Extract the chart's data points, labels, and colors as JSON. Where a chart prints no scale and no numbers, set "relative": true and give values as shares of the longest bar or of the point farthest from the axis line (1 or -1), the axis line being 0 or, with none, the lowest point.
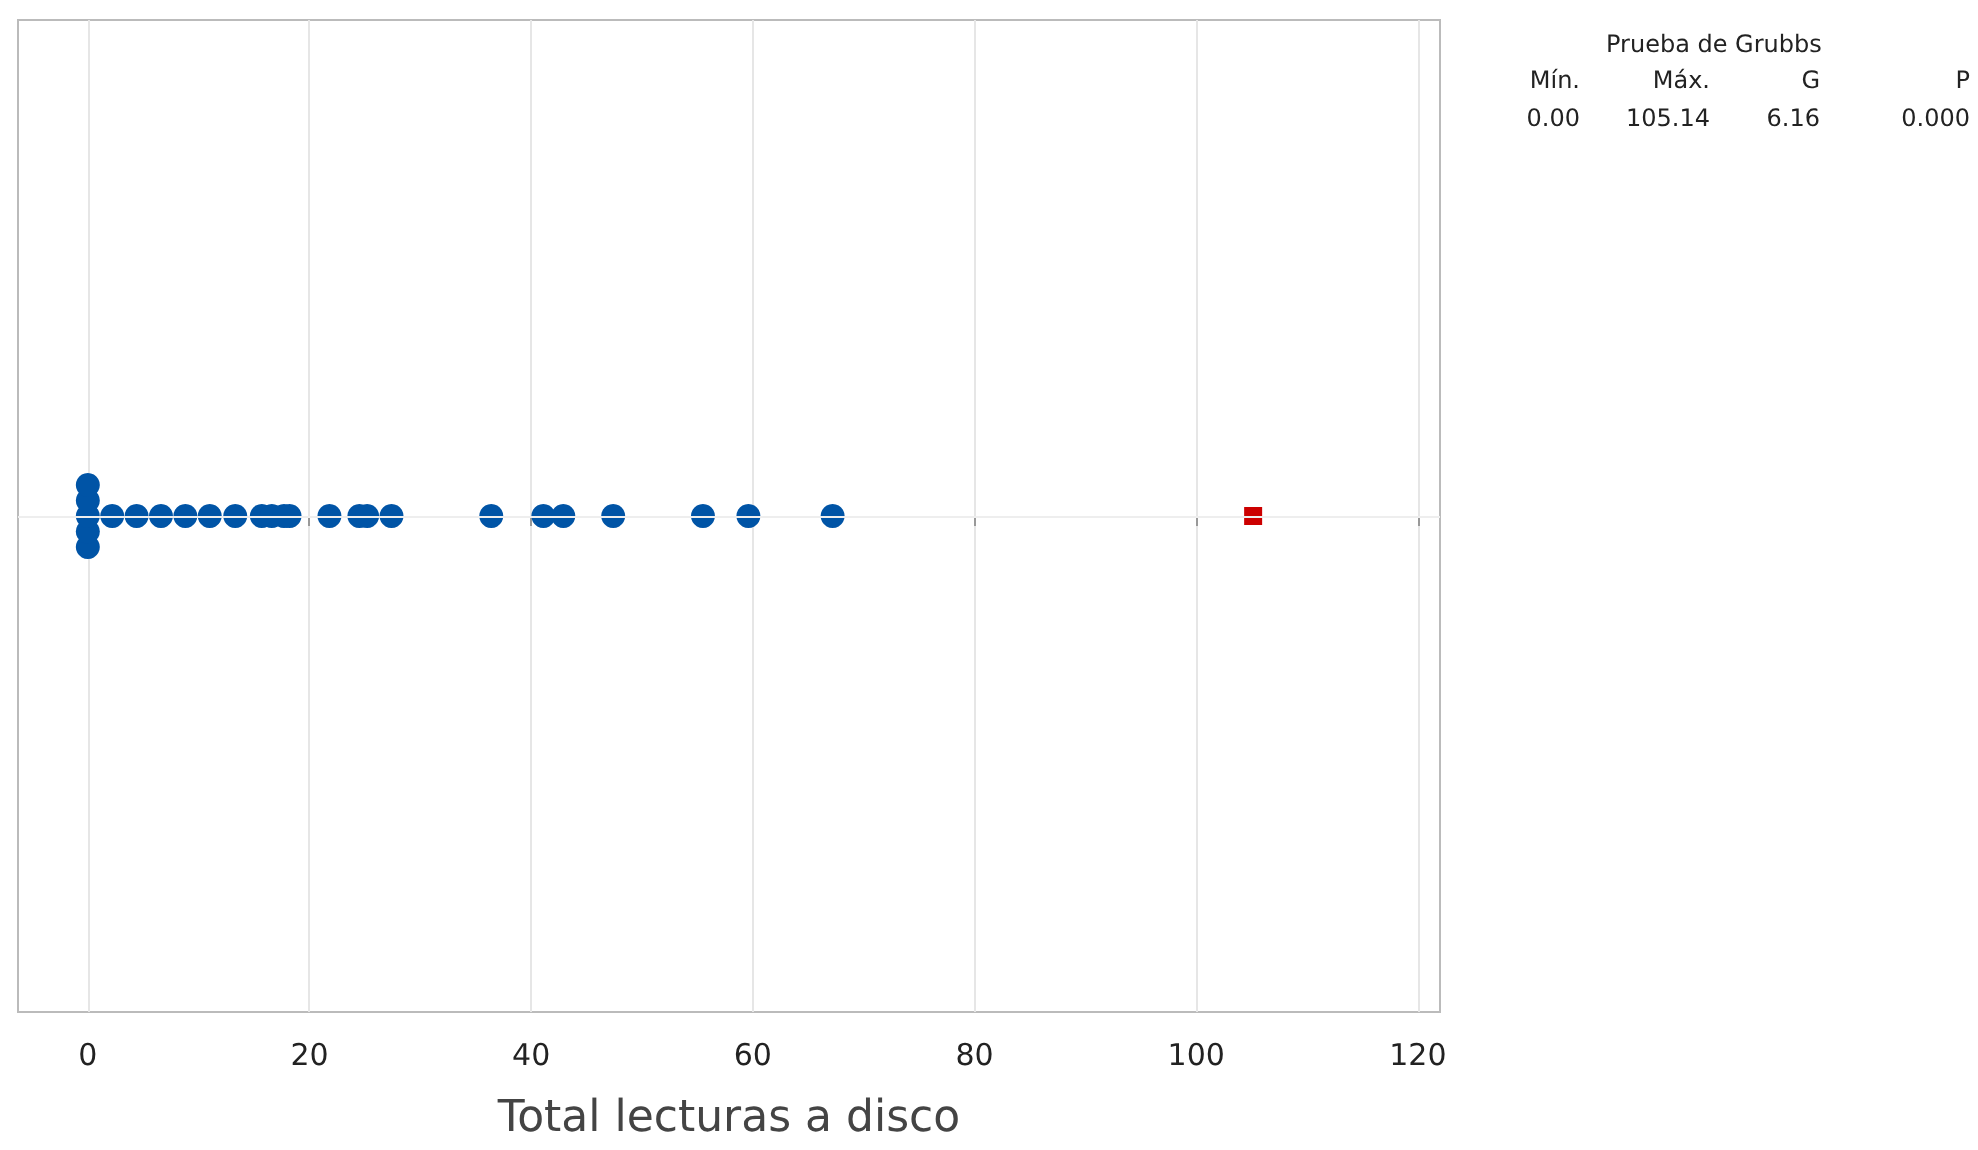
{
  "chart_data": {
    "type": "scatter",
    "xlabel": "Total lecturas a disco",
    "relative": true,
    "tick_labels": "x",
    "xlim": [
      -6.3,
      122
    ],
    "xticks": [
      0,
      20,
      40,
      60,
      80,
      100,
      120
    ],
    "grid": "x",
    "series": [
      {
        "color": "#0054a6",
        "marker": "circle",
        "x": [
          0,
          0,
          0,
          0,
          0,
          2.2,
          4.4,
          6.6,
          8.8,
          11,
          13.3,
          15.7,
          16.6,
          17.7,
          18.2,
          21.8,
          24.5,
          25.2,
          27.4,
          36.4,
          41.1,
          42.9,
          47.4,
          55.5,
          59.6,
          67.2
        ],
        "values": [
          -1,
          -0.5,
          0,
          0.5,
          1,
          0,
          0,
          0,
          0,
          0,
          0,
          0,
          0,
          0,
          0,
          0,
          0,
          0,
          0,
          0,
          0,
          0,
          0,
          0,
          0,
          0
        ]
      },
      {
        "color": "#cc0000",
        "marker": "square",
        "x": [
          105.14
        ],
        "values": [
          0
        ]
      }
    ],
    "ref_lines": [
      {
        "axis": "y",
        "value": 0,
        "color": "#eeeeee"
      }
    ],
    "annotations": [
      "Prueba de Grubbs",
      "Mín.",
      "Máx.",
      "G",
      "P",
      "0.00",
      "105.14",
      "6.16",
      "0.000"
    ]
  }
}
